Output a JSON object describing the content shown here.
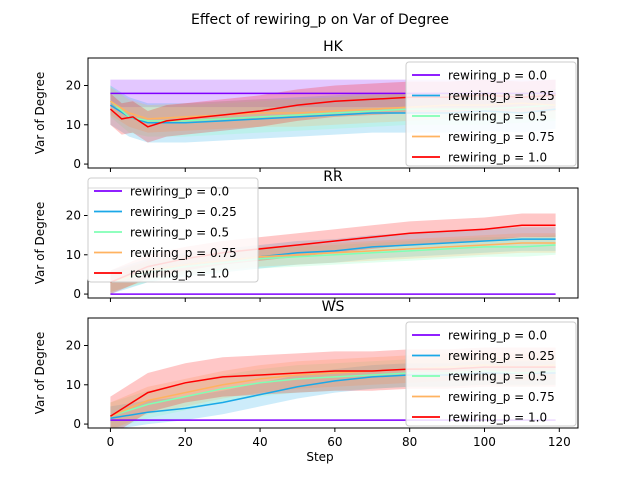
{
  "title": "Effect of rewiring_p on  Var of Degree",
  "chart_data": {
    "type": "line",
    "xlabel": "Step",
    "ylabel": "Var of Degree",
    "xlim": [
      -6,
      125
    ],
    "ylim": [
      -1,
      27
    ],
    "xticks": [
      "0",
      "20",
      "40",
      "60",
      "80",
      "100",
      "120"
    ],
    "yticks": [
      "0",
      "10",
      "20"
    ],
    "series_names": [
      "rewiring_p = 0.0",
      "rewiring_p = 0.25",
      "rewiring_p = 0.5",
      "rewiring_p = 0.75",
      "rewiring_p = 1.0"
    ],
    "colors": [
      "#8000ff",
      "#1aa8e8",
      "#80ffb4",
      "#ffb360",
      "#ff0000"
    ],
    "panels": [
      {
        "title": "HK",
        "legend": "top-right",
        "series": [
          {
            "x": [
              0,
              20,
              40,
              60,
              80,
              100,
              119
            ],
            "y": [
              18,
              18,
              18,
              18,
              18,
              18,
              18
            ],
            "band": 3.5
          },
          {
            "x": [
              0,
              5,
              10,
              20,
              30,
              40,
              50,
              60,
              70,
              80,
              90,
              100,
              110,
              119
            ],
            "y": [
              15,
              12,
              10.5,
              10.5,
              11,
              11.5,
              12,
              12.5,
              13,
              13,
              13,
              13.5,
              13,
              14
            ],
            "band": 5
          },
          {
            "x": [
              0,
              5,
              10,
              20,
              30,
              40,
              50,
              60,
              70,
              80,
              90,
              100,
              110,
              119
            ],
            "y": [
              16,
              12,
              11,
              11,
              11.5,
              12,
              12.5,
              13,
              13.5,
              14,
              14,
              14,
              14.5,
              15
            ],
            "band": 4
          },
          {
            "x": [
              0,
              5,
              10,
              20,
              30,
              40,
              50,
              60,
              70,
              80,
              90,
              100,
              110,
              119
            ],
            "y": [
              16,
              13,
              11.5,
              12,
              12.5,
              13,
              13,
              13.5,
              14,
              14.5,
              15,
              15,
              15.5,
              15
            ],
            "band": 3.5
          },
          {
            "x": [
              0,
              3,
              6,
              10,
              15,
              20,
              30,
              40,
              50,
              60,
              70,
              80,
              90,
              100,
              110,
              119
            ],
            "y": [
              14,
              11.5,
              12,
              9.5,
              11,
              11.5,
              12.5,
              13.5,
              15,
              16,
              16.5,
              17,
              17,
              17.5,
              17,
              17.5
            ],
            "band": 4
          }
        ]
      },
      {
        "title": "RR",
        "legend": "top-left",
        "series": [
          {
            "x": [
              0,
              20,
              40,
              60,
              80,
              100,
              119
            ],
            "y": [
              0,
              0,
              0,
              0,
              0,
              0,
              0
            ],
            "band": 0
          },
          {
            "x": [
              0,
              10,
              20,
              30,
              40,
              50,
              60,
              70,
              80,
              90,
              100,
              110,
              119
            ],
            "y": [
              3,
              6,
              7.5,
              8.5,
              9.5,
              10.5,
              11,
              12,
              12.5,
              13,
              13.5,
              14,
              14
            ],
            "band": 3
          },
          {
            "x": [
              0,
              10,
              20,
              30,
              40,
              50,
              60,
              70,
              80,
              90,
              100,
              110,
              119
            ],
            "y": [
              3,
              5.5,
              7,
              8,
              9,
              9.5,
              10,
              10.5,
              11,
              11.5,
              12,
              12,
              12.5
            ],
            "band": 2.5
          },
          {
            "x": [
              0,
              10,
              20,
              30,
              40,
              50,
              60,
              70,
              80,
              90,
              100,
              110,
              119
            ],
            "y": [
              3,
              6,
              7.5,
              8.5,
              9.5,
              10,
              10.5,
              11,
              11.5,
              12,
              12.5,
              13,
              13
            ],
            "band": 2.5
          },
          {
            "x": [
              0,
              10,
              20,
              30,
              40,
              50,
              60,
              70,
              80,
              90,
              100,
              110,
              119
            ],
            "y": [
              3,
              7,
              9,
              10.5,
              11.5,
              12.5,
              13.5,
              14.5,
              15.5,
              16,
              16.5,
              17.5,
              17.5
            ],
            "band": 3
          }
        ]
      },
      {
        "title": "WS",
        "legend": "top-right",
        "series": [
          {
            "x": [
              0,
              20,
              40,
              60,
              80,
              100,
              119
            ],
            "y": [
              1,
              1,
              1,
              1,
              1,
              1,
              1
            ],
            "band": 0.2
          },
          {
            "x": [
              0,
              10,
              20,
              30,
              40,
              50,
              60,
              70,
              80,
              90,
              100,
              110,
              119
            ],
            "y": [
              1.5,
              3,
              4,
              5.5,
              7.5,
              9.5,
              11,
              12,
              12.5,
              12.5,
              13,
              13,
              13
            ],
            "band": 3
          },
          {
            "x": [
              0,
              10,
              20,
              30,
              40,
              50,
              60,
              70,
              80,
              90,
              100,
              110,
              119
            ],
            "y": [
              2,
              5,
              7,
              9,
              10.5,
              11.5,
              12,
              12.5,
              13,
              13,
              13.5,
              13,
              13.5
            ],
            "band": 3.5
          },
          {
            "x": [
              0,
              10,
              20,
              30,
              40,
              50,
              60,
              70,
              80,
              90,
              100,
              110,
              119
            ],
            "y": [
              2,
              6,
              8,
              10,
              11.5,
              12.5,
              13,
              13.5,
              14,
              14.5,
              15,
              14.5,
              15
            ],
            "band": 3.5
          },
          {
            "x": [
              0,
              5,
              10,
              20,
              30,
              40,
              50,
              60,
              70,
              80,
              90,
              100,
              110,
              119
            ],
            "y": [
              2,
              5,
              8,
              10.5,
              12,
              12.5,
              13,
              13.5,
              13.5,
              14,
              14,
              14.5,
              14.5,
              14.5
            ],
            "band": 5
          }
        ]
      }
    ]
  }
}
